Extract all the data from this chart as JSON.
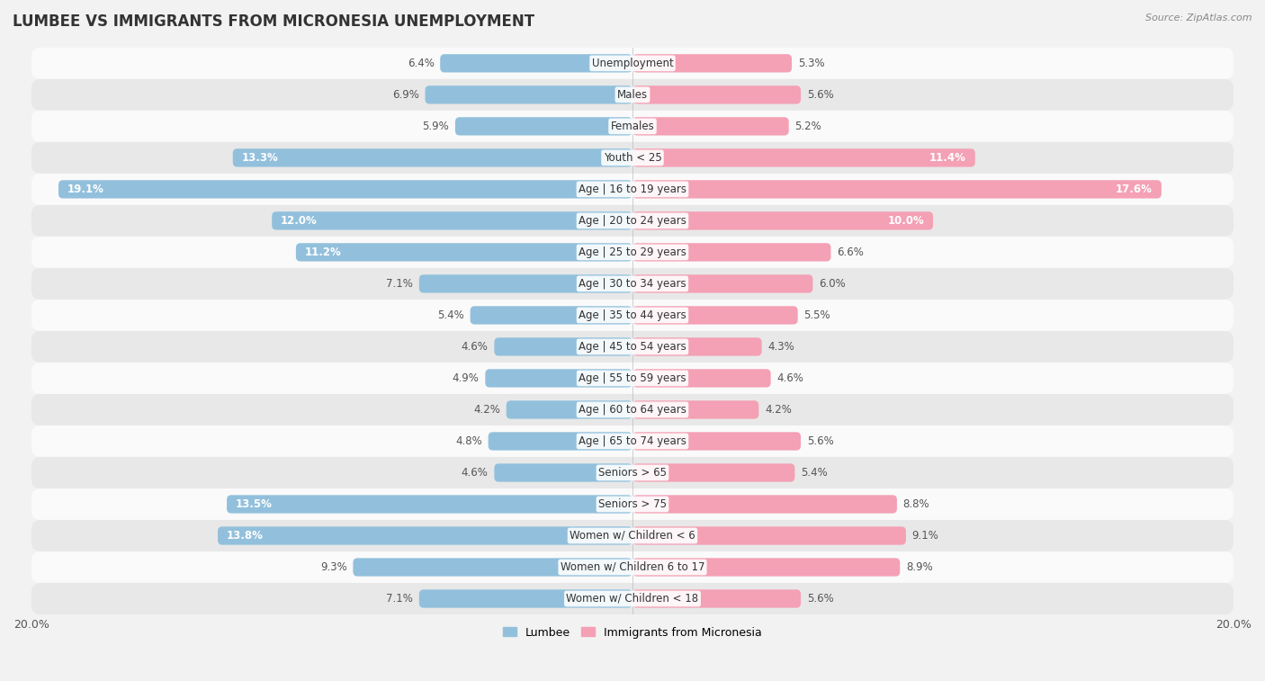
{
  "title": "LUMBEE VS IMMIGRANTS FROM MICRONESIA UNEMPLOYMENT",
  "source": "Source: ZipAtlas.com",
  "categories": [
    "Unemployment",
    "Males",
    "Females",
    "Youth < 25",
    "Age | 16 to 19 years",
    "Age | 20 to 24 years",
    "Age | 25 to 29 years",
    "Age | 30 to 34 years",
    "Age | 35 to 44 years",
    "Age | 45 to 54 years",
    "Age | 55 to 59 years",
    "Age | 60 to 64 years",
    "Age | 65 to 74 years",
    "Seniors > 65",
    "Seniors > 75",
    "Women w/ Children < 6",
    "Women w/ Children 6 to 17",
    "Women w/ Children < 18"
  ],
  "lumbee_values": [
    6.4,
    6.9,
    5.9,
    13.3,
    19.1,
    12.0,
    11.2,
    7.1,
    5.4,
    4.6,
    4.9,
    4.2,
    4.8,
    4.6,
    13.5,
    13.8,
    9.3,
    7.1
  ],
  "micronesia_values": [
    5.3,
    5.6,
    5.2,
    11.4,
    17.6,
    10.0,
    6.6,
    6.0,
    5.5,
    4.3,
    4.6,
    4.2,
    5.6,
    5.4,
    8.8,
    9.1,
    8.9,
    5.6
  ],
  "lumbee_color": "#92C0DC",
  "micronesia_color": "#F4A0B5",
  "lumbee_label": "Lumbee",
  "micronesia_label": "Immigrants from Micronesia",
  "axis_max": 20.0,
  "background_color": "#f2f2f2",
  "row_color_light": "#fafafa",
  "row_color_dark": "#e8e8e8",
  "bar_height": 0.58,
  "label_fontsize": 8.5,
  "category_fontsize": 8.5,
  "title_fontsize": 12,
  "threshold_white_label": 10.0
}
